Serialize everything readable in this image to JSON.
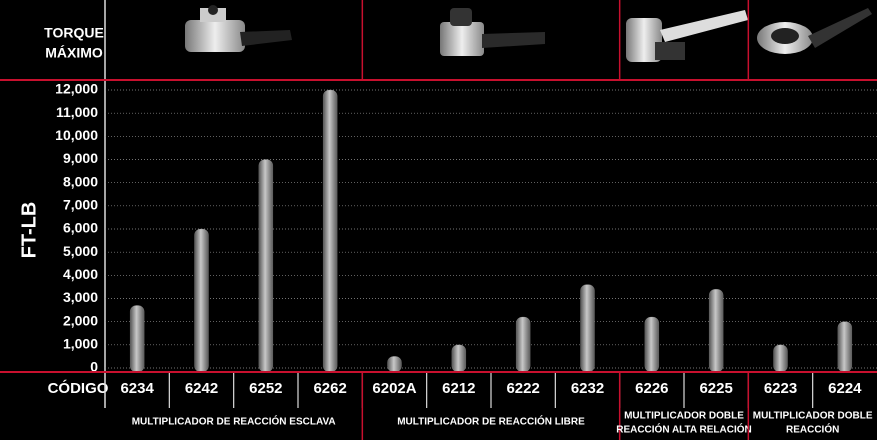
{
  "chart_data": {
    "type": "bar",
    "header_label": [
      "TORQUE",
      "MÁXIMO"
    ],
    "y_label": "FT-LB",
    "x_label": "CÓDIGO",
    "categories": [
      "6234",
      "6242",
      "6252",
      "6262",
      "6202A",
      "6212",
      "6222",
      "6232",
      "6226",
      "6225",
      "6223",
      "6224"
    ],
    "values": [
      2700,
      6000,
      9000,
      12000,
      500,
      1000,
      2200,
      3600,
      2200,
      3400,
      1000,
      2000
    ],
    "groups": [
      [
        "MULTIPLICADOR DE REACCIÓN ESCLAVA"
      ],
      [
        "MULTIPLICADOR DE REACCIÓN LIBRE"
      ],
      [
        "MULTIPLICADOR DOBLE",
        "REACCIÓN ALTA RELACIÓN"
      ],
      [
        "MULTIPLICADOR DOBLE",
        "REACCIÓN"
      ]
    ],
    "ylim": [
      0,
      12000
    ],
    "yticks": [
      0,
      {
        "value": 1000,
        "label": "1,000"
      },
      {
        "value": 2000,
        "label": "2,000"
      },
      {
        "value": 3000,
        "label": "3,000"
      },
      {
        "value": 4000,
        "label": "4,000"
      },
      {
        "value": 5000,
        "label": "5,000"
      },
      {
        "value": 6000,
        "label": "6,000"
      },
      {
        "value": 7000,
        "label": "7,000"
      },
      {
        "value": 8000,
        "label": "8,000"
      },
      {
        "value": 9000,
        "label": "9,000"
      },
      {
        "value": 10000,
        "label": "10,000"
      },
      {
        "value": 11000,
        "label": "11,000"
      },
      {
        "value": 12000,
        "label": "12,000"
      }
    ],
    "grid": true,
    "color": "#8a8a8a",
    "separator_color": "#c8102e"
  }
}
